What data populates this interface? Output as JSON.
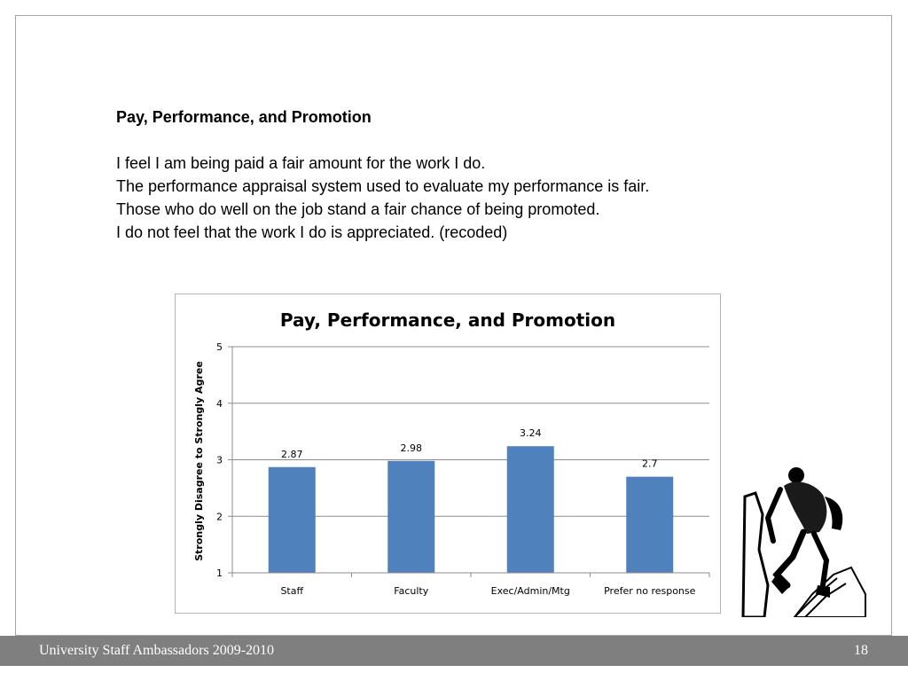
{
  "slide": {
    "heading": "Pay, Performance, and Promotion",
    "lines": [
      "I feel I am being paid a fair amount for the work I do.",
      "The performance appraisal system used to evaluate my performance is fair.",
      "Those who do well on the job stand a fair chance of being promoted.",
      "I do not feel that the work I do is appreciated. (recoded)"
    ]
  },
  "chart_data": {
    "type": "bar",
    "title": "Pay, Performance, and Promotion",
    "ylabel": "Strongly Disagree to Strongly Agree",
    "xlabel": "",
    "categories": [
      "Staff",
      "Faculty",
      "Exec/Admin/Mtg",
      "Prefer no response"
    ],
    "values": [
      2.87,
      2.98,
      3.24,
      2.7
    ],
    "data_labels": [
      "2.87",
      "2.98",
      "3.24",
      "2.7"
    ],
    "ylim": [
      1,
      5
    ],
    "yticks": [
      1,
      2,
      3,
      4,
      5
    ],
    "grid": true,
    "bar_color": "#4f81bd"
  },
  "footer": {
    "left_text": "University Staff Ambassadors 2009-2010",
    "page_number": "18"
  }
}
